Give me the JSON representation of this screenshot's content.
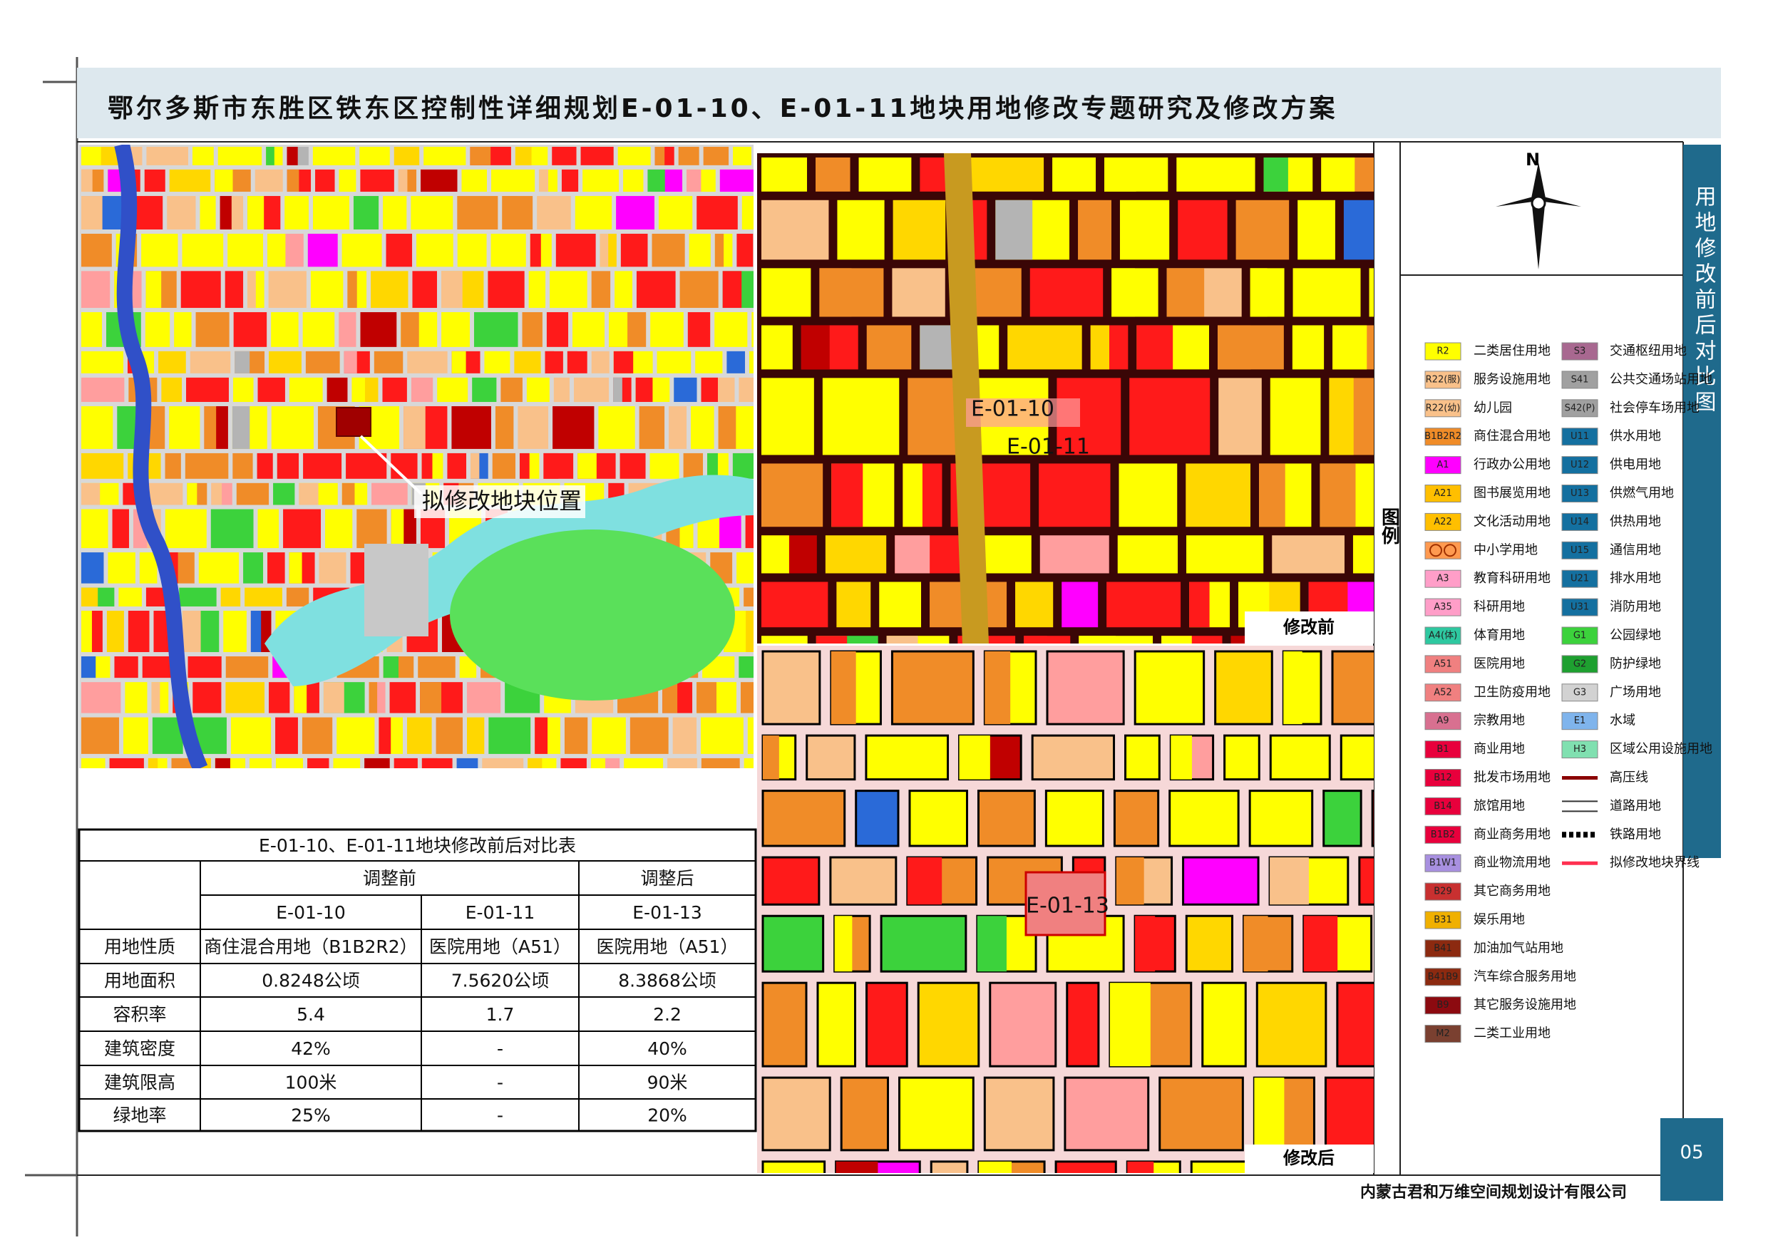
{
  "header": {
    "title": "鄂尔多斯市东胜区铁东区控制性详细规划E-01-10、E-01-11地块用地修改专题研究及修改方案"
  },
  "side_title": "用地修改前后对比图",
  "page_number": "05",
  "company": "内蒙古君和万维空间规划设计有限公司",
  "location_map": {
    "label": "拟修改地块位置"
  },
  "before_map": {
    "caption": "修改前",
    "labels": [
      "E-01-10",
      "E-01-11"
    ]
  },
  "after_map": {
    "caption": "修改后",
    "labels": [
      "E-01-13"
    ]
  },
  "compass": {
    "north": "N"
  },
  "legend": {
    "title": "图例",
    "areas": [
      {
        "code": "R2",
        "name": "二类居住用地",
        "color": "#ffff00"
      },
      {
        "code": "R22(服)",
        "name": "服务设施用地",
        "color": "#f9c18a"
      },
      {
        "code": "R22(幼)",
        "name": "幼儿园",
        "color": "#f9c18a"
      },
      {
        "code": "B1B2R2",
        "name": "商住混合用地",
        "color": "#f08c28"
      },
      {
        "code": "A1",
        "name": "行政办公用地",
        "color": "#ff00ff"
      },
      {
        "code": "A21",
        "name": "图书展览用地",
        "color": "#ffbf00"
      },
      {
        "code": "A22",
        "name": "文化活动用地",
        "color": "#ffbf00"
      },
      {
        "name": "中小学用地",
        "color": "#ff9a50"
      },
      {
        "code": "A3",
        "name": "教育科研用地",
        "color": "#ff9ec8"
      },
      {
        "code": "A35",
        "name": "科研用地",
        "color": "#ff9ec8"
      },
      {
        "code": "A4(体)",
        "name": "体育用地",
        "color": "#2ec8a0"
      },
      {
        "code": "A51",
        "name": "医院用地",
        "color": "#f08080"
      },
      {
        "code": "A52",
        "name": "卫生防疫用地",
        "color": "#f08080"
      },
      {
        "code": "A9",
        "name": "宗教用地",
        "color": "#d87090"
      },
      {
        "code": "B1",
        "name": "商业用地",
        "color": "#e8003c"
      },
      {
        "code": "B12",
        "name": "批发市场用地",
        "color": "#e8003c"
      },
      {
        "code": "B14",
        "name": "旅馆用地",
        "color": "#e8003c"
      },
      {
        "code": "B1B2",
        "name": "商业商务用地",
        "color": "#e8003c"
      },
      {
        "code": "B1W1",
        "name": "商业物流用地",
        "color": "#a890e0"
      },
      {
        "code": "B29",
        "name": "其它商务用地",
        "color": "#c83030"
      },
      {
        "code": "B31",
        "name": "娱乐用地",
        "color": "#f0b000"
      },
      {
        "code": "B41",
        "name": "加油加气站用地",
        "color": "#8c2a10"
      },
      {
        "code": "B41B9",
        "name": "汽车综合服务用地",
        "color": "#8c2a10"
      },
      {
        "code": "B9",
        "name": "其它服务设施用地",
        "color": "#8c0a10"
      },
      {
        "code": "M2",
        "name": "二类工业用地",
        "color": "#7a4030"
      },
      {
        "code": "S3",
        "name": "交通枢纽用地",
        "color": "#a86890"
      },
      {
        "code": "S41",
        "name": "公共交通场站用地",
        "color": "#a0a0a0"
      },
      {
        "code": "S42(P)",
        "name": "社会停车场用地",
        "color": "#a0a0a0"
      },
      {
        "code": "U11",
        "name": "供水用地",
        "color": "#1470a0"
      },
      {
        "code": "U12",
        "name": "供电用地",
        "color": "#1470a0"
      },
      {
        "code": "U13",
        "name": "供燃气用地",
        "color": "#1470a0"
      },
      {
        "code": "U14",
        "name": "供热用地",
        "color": "#1470a0"
      },
      {
        "code": "U15",
        "name": "通信用地",
        "color": "#1470a0"
      },
      {
        "code": "U21",
        "name": "排水用地",
        "color": "#1470a0"
      },
      {
        "code": "U31",
        "name": "消防用地",
        "color": "#1470a0"
      },
      {
        "code": "G1",
        "name": "公园绿地",
        "color": "#3cd23c"
      },
      {
        "code": "G2",
        "name": "防护绿地",
        "color": "#1ea030"
      },
      {
        "code": "G3",
        "name": "广场用地",
        "color": "#d2d2d2"
      },
      {
        "code": "E1",
        "name": "水域",
        "color": "#7fb4ec"
      },
      {
        "code": "H3",
        "name": "区域公用设施用地",
        "color": "#80e0b0"
      }
    ],
    "lines": [
      {
        "name": "高压线",
        "color": "#8b0000"
      },
      {
        "name": "道路用地",
        "color": "#333333"
      },
      {
        "name": "铁路用地",
        "color": "#000000"
      },
      {
        "name": "拟修改地块界线",
        "color": "#ff3050"
      }
    ]
  },
  "table": {
    "title": "E-01-10、E-01-11地块修改前后对比表",
    "groups": [
      "调整前",
      "调整后"
    ],
    "plots": [
      "E-01-10",
      "E-01-11",
      "E-01-13"
    ],
    "rows": [
      [
        "用地性质",
        "商住混合用地（B1B2R2）",
        "医院用地（A51）",
        "医院用地（A51）"
      ],
      [
        "用地面积",
        "0.8248公顷",
        "7.5620公顷",
        "8.3868公顷"
      ],
      [
        "容积率",
        "5.4",
        "1.7",
        "2.2"
      ],
      [
        "建筑密度",
        "42%",
        "-",
        "40%"
      ],
      [
        "建筑限高",
        "100米",
        "-",
        "90米"
      ],
      [
        "绿地率",
        "25%",
        "-",
        "20%"
      ]
    ]
  }
}
